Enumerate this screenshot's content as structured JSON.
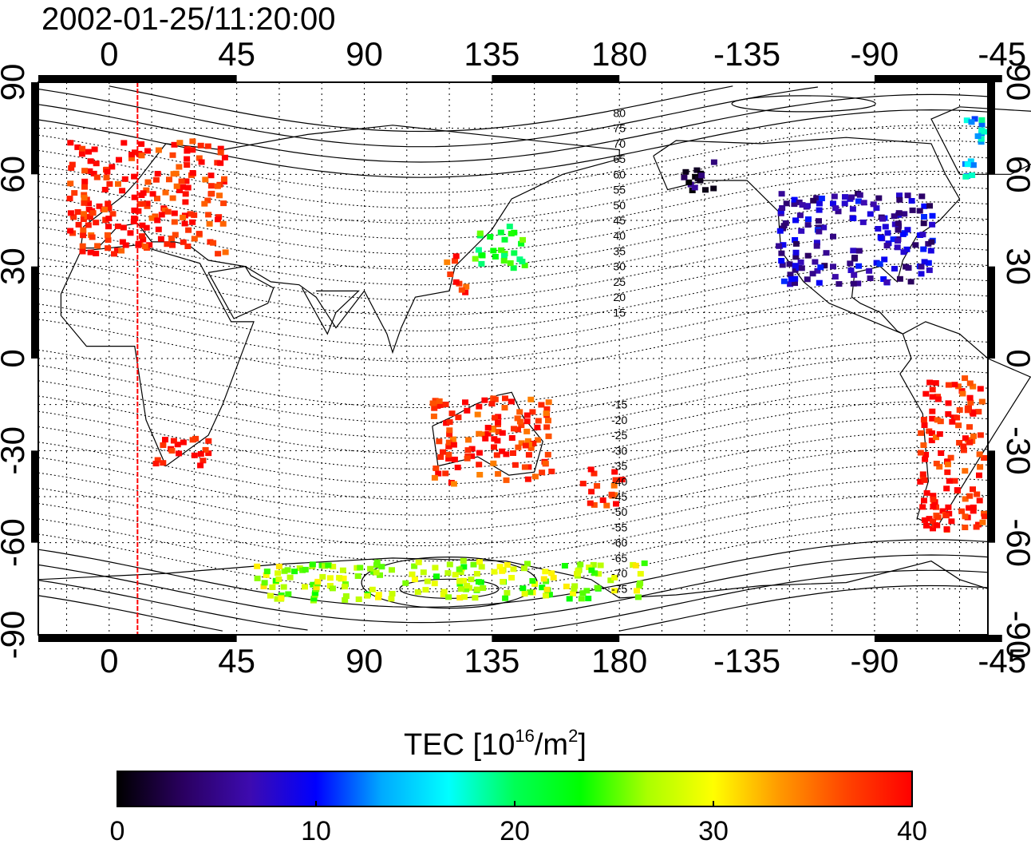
{
  "title": "2002-01-25/11:20:00",
  "map": {
    "lon_ticks": [
      "0",
      "45",
      "90",
      "135",
      "180",
      "-135",
      "-90",
      "-45"
    ],
    "lat_ticks": [
      "90",
      "60",
      "30",
      "0",
      "-30",
      "-60",
      "-90"
    ],
    "lon_range_deg": [
      -25,
      310
    ],
    "lat_range_deg": [
      -90,
      90
    ],
    "grid": "dotted, every 15 degrees",
    "marker_line_longitude": 10,
    "marker_line_color": "#ff0000",
    "contour_labels": [
      "80",
      "75",
      "70",
      "65",
      "60",
      "55",
      "50",
      "45",
      "40",
      "35",
      "30",
      "25",
      "20",
      "15",
      "-15",
      "-20",
      "-25",
      "-30",
      "-35",
      "-40",
      "-45",
      "-50",
      "-55",
      "-60",
      "-65",
      "-70",
      "-75"
    ],
    "contour_label_lats": [
      80,
      75,
      70,
      65,
      60,
      55,
      50,
      45,
      40,
      35,
      30,
      25,
      20,
      15,
      -15,
      -20,
      -25,
      -30,
      -35,
      -40,
      -45,
      -50,
      -55,
      -60,
      -65,
      -70,
      -75
    ]
  },
  "colorbar": {
    "title_main": "TEC  [10",
    "title_sup": "16",
    "title_unit": "/m",
    "title_sup2": "2",
    "title_end": "]",
    "ticks": [
      "0",
      "10",
      "20",
      "30",
      "40"
    ],
    "range": [
      0,
      40
    ],
    "colormap": [
      "#000000",
      "#2a0060",
      "#3d0bb0",
      "#0000ff",
      "#00aaff",
      "#00ffff",
      "#00ff55",
      "#00ff00",
      "#aaff00",
      "#ffff00",
      "#ff9900",
      "#ff4400",
      "#ff0000"
    ]
  },
  "chart_data": {
    "type": "scatter",
    "title": "2002-01-25/11:20:00",
    "xlabel": "",
    "ylabel": "",
    "value_label": "TEC  [10^16/m^2]",
    "xlim": [
      -25,
      310
    ],
    "ylim": [
      -90,
      90
    ],
    "clim": [
      0,
      40
    ],
    "points_format": "lon_deg_0_360, lat_deg, tec",
    "regions": [
      {
        "name": "Europe",
        "lon": [
          -15,
          40
        ],
        "lat": [
          35,
          72
        ],
        "tec": 39
      },
      {
        "name": "Japan",
        "lon": [
          128,
          146
        ],
        "lat": [
          30,
          45
        ],
        "tec": 22
      },
      {
        "name": "East China",
        "lon": [
          118,
          125
        ],
        "lat": [
          22,
          35
        ],
        "tec": 38
      },
      {
        "name": "North America",
        "lon": [
          235,
          290
        ],
        "lat": [
          25,
          55
        ],
        "tec": 7
      },
      {
        "name": "Alaska",
        "lon": [
          200,
          215
        ],
        "lat": [
          55,
          65
        ],
        "tec": 2
      },
      {
        "name": "South America",
        "lon": [
          285,
          320
        ],
        "lat": [
          -55,
          -5
        ],
        "tec": 39
      },
      {
        "name": "New Zealand",
        "lon": [
          166,
          180
        ],
        "lat": [
          -47,
          -35
        ],
        "tec": 38
      },
      {
        "name": "Australia",
        "lon": [
          113,
          155
        ],
        "lat": [
          -40,
          -12
        ],
        "tec": 38
      },
      {
        "name": "South Africa",
        "lon": [
          15,
          35
        ],
        "lat": [
          -35,
          -25
        ],
        "tec": 40
      },
      {
        "name": "Antarctic coast",
        "lon": [
          50,
          190
        ],
        "lat": [
          -78,
          -65
        ],
        "tec": 27
      },
      {
        "name": "Greenland",
        "lon": [
          300,
          340
        ],
        "lat": [
          60,
          80
        ],
        "tec": 15
      }
    ]
  }
}
